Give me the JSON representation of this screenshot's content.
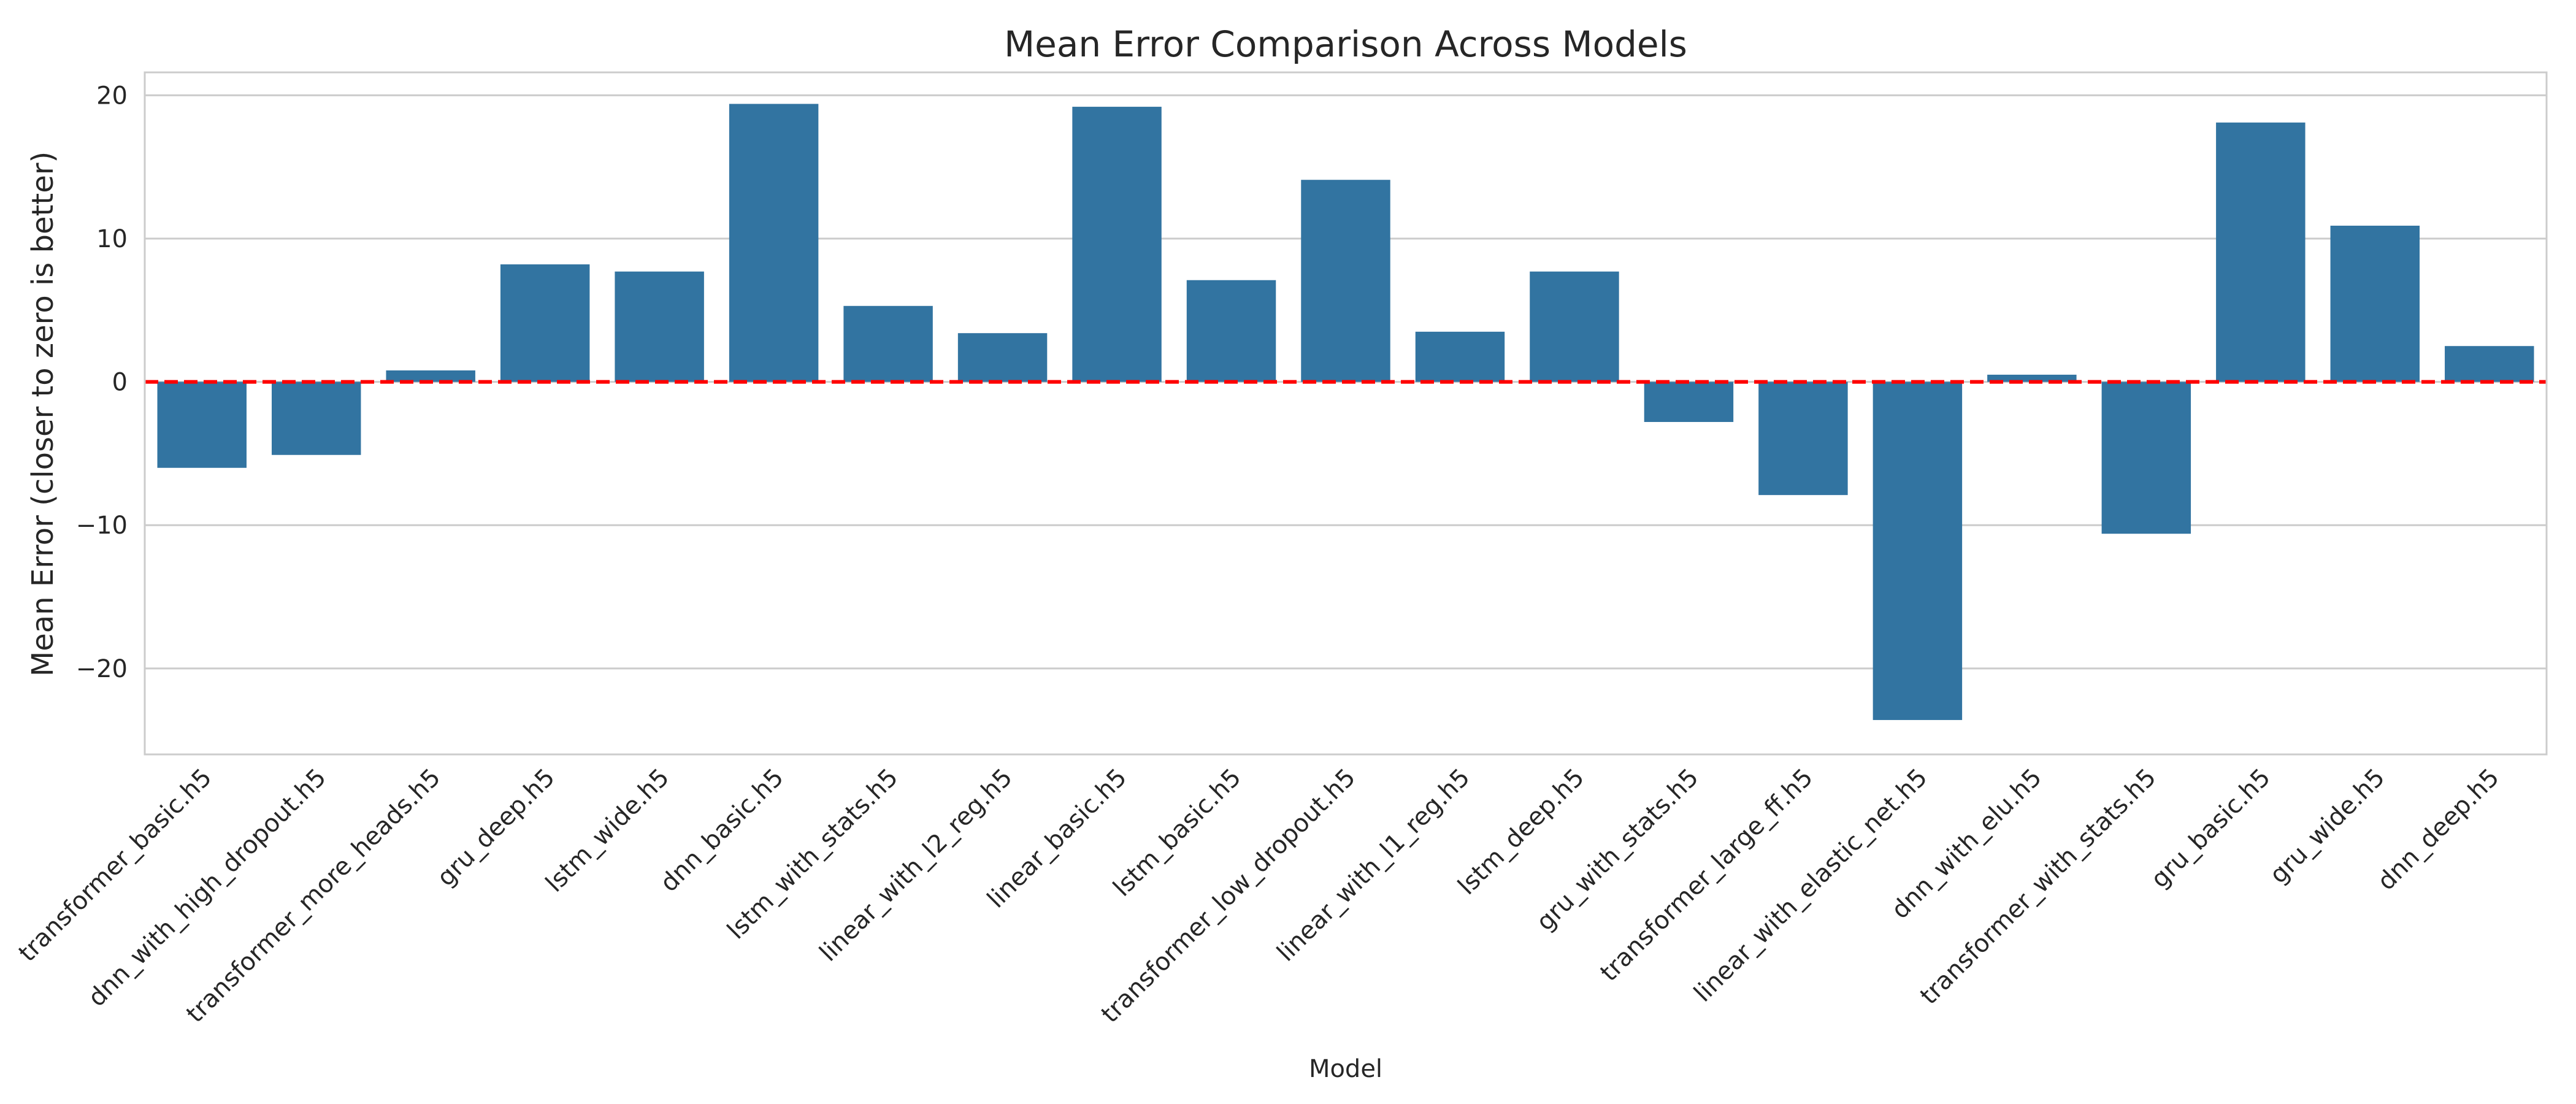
{
  "chart_data": {
    "type": "bar",
    "title": "Mean Error Comparison Across Models",
    "xlabel": "Model",
    "ylabel": "Mean Error (closer to zero is better)",
    "ylim": [
      -26,
      21.6
    ],
    "yticks": [
      -20,
      -10,
      0,
      10,
      20
    ],
    "grid": true,
    "reference_line": {
      "y": 0,
      "color": "#ff0000",
      "style": "dashed"
    },
    "bar_color": "#3274a1",
    "categories": [
      "transformer_basic.h5",
      "dnn_with_high_dropout.h5",
      "transformer_more_heads.h5",
      "gru_deep.h5",
      "lstm_wide.h5",
      "dnn_basic.h5",
      "lstm_with_stats.h5",
      "linear_with_l2_reg.h5",
      "linear_basic.h5",
      "lstm_basic.h5",
      "transformer_low_dropout.h5",
      "linear_with_l1_reg.h5",
      "lstm_deep.h5",
      "gru_with_stats.h5",
      "transformer_large_ff.h5",
      "linear_with_elastic_net.h5",
      "dnn_with_elu.h5",
      "transformer_with_stats.h5",
      "gru_basic.h5",
      "gru_wide.h5",
      "dnn_deep.h5"
    ],
    "values": [
      -6.0,
      -5.1,
      0.8,
      8.2,
      7.7,
      19.4,
      5.3,
      3.4,
      19.2,
      7.1,
      14.1,
      3.5,
      7.7,
      -2.8,
      -7.9,
      -23.6,
      0.5,
      -10.6,
      18.1,
      10.9,
      2.5
    ]
  }
}
